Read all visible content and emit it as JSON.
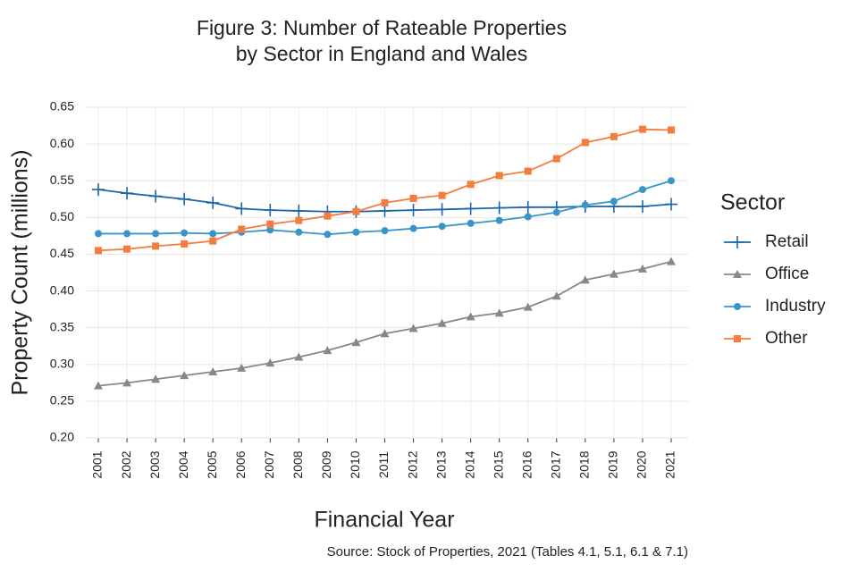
{
  "chart_data": {
    "type": "line",
    "title": [
      "Figure 3: Number of Rateable Properties",
      "by Sector in England and Wales"
    ],
    "x_label": "Financial Year",
    "y_label": "Property Count (millions)",
    "source": "Source: Stock of Properties, 2021 (Tables 4.1, 5.1, 6.1 & 7.1)",
    "legend_title": "Sector",
    "legend_position": "right",
    "grid": true,
    "categories": [
      "2001",
      "2002",
      "2003",
      "2004",
      "2005",
      "2006",
      "2007",
      "2008",
      "2009",
      "2010",
      "2011",
      "2012",
      "2013",
      "2014",
      "2015",
      "2016",
      "2017",
      "2018",
      "2019",
      "2020",
      "2021"
    ],
    "ylim": [
      0.2,
      0.65
    ],
    "yticks": [
      {
        "value": 0.2,
        "label": "0.20"
      },
      0.25,
      {
        "value": 0.3,
        "label": "0.30"
      },
      0.35,
      {
        "value": 0.4,
        "label": "0.40"
      },
      0.45,
      {
        "value": 0.5,
        "label": "0.50"
      },
      0.55,
      {
        "value": 0.6,
        "label": "0.60"
      },
      0.65
    ],
    "series": [
      {
        "name": "Retail",
        "color": "#1f65a8",
        "marker": "plus",
        "values": [
          0.538,
          0.533,
          0.529,
          0.525,
          0.52,
          0.512,
          0.51,
          0.509,
          0.508,
          0.508,
          0.509,
          0.51,
          0.511,
          0.512,
          0.513,
          0.514,
          0.514,
          0.515,
          0.515,
          0.515,
          0.518
        ]
      },
      {
        "name": "Office",
        "color": "#888888",
        "marker": "triangle",
        "values": [
          0.271,
          0.275,
          0.28,
          0.285,
          0.29,
          0.295,
          0.302,
          0.31,
          0.319,
          0.33,
          0.342,
          0.349,
          0.356,
          0.365,
          0.37,
          0.378,
          0.393,
          0.415,
          0.423,
          0.43,
          0.44
        ]
      },
      {
        "name": "Industry",
        "color": "#3a93c9",
        "marker": "circle",
        "values": [
          0.478,
          0.478,
          0.478,
          0.479,
          0.478,
          0.48,
          0.483,
          0.48,
          0.477,
          0.48,
          0.482,
          0.485,
          0.488,
          0.492,
          0.496,
          0.501,
          0.507,
          0.517,
          0.522,
          0.538,
          0.55
        ]
      },
      {
        "name": "Other",
        "color": "#f47d3e",
        "marker": "square",
        "values": [
          0.455,
          0.457,
          0.461,
          0.464,
          0.468,
          0.484,
          0.491,
          0.496,
          0.502,
          0.508,
          0.52,
          0.526,
          0.53,
          0.545,
          0.557,
          0.563,
          0.58,
          0.602,
          0.61,
          0.62,
          0.619
        ]
      }
    ]
  }
}
